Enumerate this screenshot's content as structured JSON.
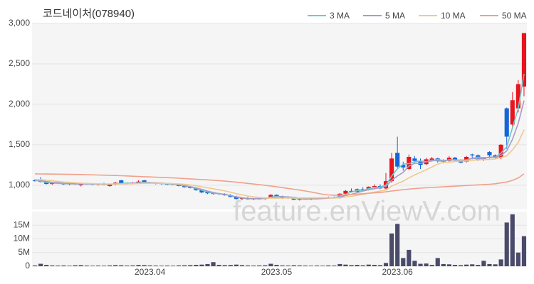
{
  "chart_data": {
    "type": "candlestick",
    "title": "코드네이처(078940)",
    "watermark": "feature.enViewV.com",
    "up_color": "#e8141e",
    "down_color": "#1565d8",
    "volume_color": "#4a4a6a",
    "categories": [
      null,
      null,
      null,
      null,
      null,
      null,
      null,
      null,
      null,
      null,
      null,
      null,
      null,
      null,
      null,
      null,
      null,
      null,
      null,
      null,
      "2023.04",
      null,
      null,
      null,
      null,
      null,
      null,
      null,
      null,
      null,
      null,
      null,
      null,
      null,
      null,
      null,
      null,
      null,
      null,
      null,
      null,
      null,
      "2023.05",
      null,
      null,
      null,
      null,
      null,
      null,
      null,
      null,
      null,
      null,
      null,
      null,
      null,
      null,
      null,
      null,
      null,
      null,
      null,
      null,
      "2023.06",
      null,
      null,
      null,
      null,
      null,
      null,
      null,
      null,
      null,
      null,
      null,
      null,
      null,
      null,
      null,
      null,
      null,
      null,
      null,
      null,
      null,
      null
    ],
    "open": [
      1060,
      1060,
      1040,
      1015,
      1030,
      1020,
      1010,
      1025,
      1000,
      1020,
      1015,
      1010,
      1015,
      990,
      1010,
      1060,
      1030,
      1020,
      1030,
      1060,
      1030,
      1020,
      1025,
      1015,
      1005,
      1005,
      990,
      980,
      960,
      940,
      915,
      900,
      900,
      890,
      875,
      860,
      830,
      840,
      825,
      835,
      830,
      845,
      880,
      860,
      840,
      850,
      820,
      830,
      825,
      835,
      840,
      845,
      850,
      840,
      895,
      930,
      920,
      950,
      945,
      980,
      990,
      960,
      1050,
      1400,
      1250,
      1200,
      1330,
      1300,
      1260,
      1310,
      1330,
      1300,
      1300,
      1340,
      1310,
      1290,
      1380,
      1370,
      1320,
      1410,
      1370,
      1340,
      1950,
      1750,
      1950,
      2220
    ],
    "high": [
      1075,
      1100,
      1050,
      1040,
      1040,
      1030,
      1030,
      1035,
      1030,
      1030,
      1025,
      1020,
      1030,
      1020,
      1040,
      1065,
      1035,
      1040,
      1060,
      1065,
      1040,
      1030,
      1030,
      1025,
      1020,
      1015,
      1000,
      990,
      970,
      955,
      930,
      915,
      905,
      900,
      890,
      870,
      850,
      855,
      840,
      850,
      850,
      890,
      885,
      870,
      860,
      855,
      840,
      845,
      840,
      850,
      850,
      860,
      860,
      900,
      940,
      960,
      960,
      975,
      985,
      1010,
      1010,
      1150,
      1400,
      1600,
      1290,
      1380,
      1360,
      1330,
      1340,
      1350,
      1340,
      1320,
      1360,
      1350,
      1320,
      1360,
      1390,
      1380,
      1350,
      1420,
      1380,
      1510,
      1960,
      2150,
      2300,
      2880
    ],
    "low": [
      1045,
      1035,
      1010,
      1005,
      1015,
      1005,
      1000,
      1005,
      985,
      1005,
      1000,
      995,
      1000,
      980,
      1000,
      1020,
      1010,
      1010,
      1020,
      1020,
      1015,
      1010,
      1005,
      1000,
      1000,
      985,
      970,
      960,
      930,
      900,
      890,
      885,
      880,
      870,
      850,
      820,
      815,
      820,
      815,
      820,
      820,
      840,
      850,
      830,
      830,
      815,
      810,
      820,
      815,
      825,
      830,
      835,
      835,
      835,
      880,
      910,
      910,
      930,
      935,
      960,
      950,
      950,
      1030,
      1200,
      1180,
      1190,
      1280,
      1200,
      1250,
      1290,
      1280,
      1270,
      1290,
      1300,
      1270,
      1280,
      1320,
      1300,
      1300,
      1330,
      1330,
      1320,
      1450,
      1700,
      1900,
      2100
    ],
    "close": [
      1050,
      1040,
      1015,
      1030,
      1020,
      1010,
      1025,
      1010,
      1020,
      1015,
      1010,
      1015,
      1005,
      1010,
      1030,
      1025,
      1020,
      1030,
      1045,
      1030,
      1020,
      1025,
      1015,
      1010,
      1012,
      990,
      975,
      965,
      940,
      910,
      900,
      895,
      890,
      875,
      855,
      830,
      840,
      825,
      835,
      830,
      845,
      880,
      860,
      840,
      850,
      820,
      830,
      825,
      835,
      840,
      845,
      850,
      840,
      895,
      930,
      920,
      950,
      940,
      980,
      990,
      960,
      1050,
      1330,
      1230,
      1220,
      1350,
      1300,
      1250,
      1320,
      1330,
      1300,
      1290,
      1340,
      1310,
      1280,
      1350,
      1370,
      1320,
      1330,
      1370,
      1340,
      1500,
      1600,
      2050,
      2250,
      2880
    ],
    "volume": [
      300000,
      900000,
      500000,
      300000,
      250000,
      300000,
      200000,
      350000,
      400000,
      250000,
      200000,
      250000,
      200000,
      300000,
      400000,
      350000,
      250000,
      300000,
      450000,
      400000,
      300000,
      250000,
      200000,
      250000,
      200000,
      300000,
      350000,
      400000,
      500000,
      600000,
      800000,
      1500000,
      500000,
      400000,
      450000,
      600000,
      400000,
      300000,
      250000,
      300000,
      350000,
      900000,
      500000,
      300000,
      250000,
      350000,
      300000,
      250000,
      200000,
      250000,
      200000,
      300000,
      250000,
      800000,
      600000,
      400000,
      500000,
      350000,
      600000,
      500000,
      400000,
      1200000,
      12000000,
      15500000,
      3000000,
      6000000,
      2000000,
      900000,
      1000000,
      500000,
      3000000,
      800000,
      700000,
      500000,
      400000,
      600000,
      700000,
      500000,
      2000000,
      800000,
      700000,
      2500000,
      16000000,
      19000000,
      5000000,
      11000000
    ],
    "series": [
      {
        "name": "3 MA",
        "color": "#6cc9cc",
        "values": [
          1060,
          1050,
          1035,
          1028,
          1022,
          1020,
          1018,
          1015,
          1018,
          1015,
          1015,
          1013,
          1010,
          1010,
          1015,
          1022,
          1025,
          1025,
          1032,
          1035,
          1032,
          1025,
          1020,
          1017,
          1012,
          1004,
          992,
          977,
          960,
          938,
          917,
          902,
          895,
          887,
          873,
          853,
          842,
          832,
          833,
          830,
          837,
          852,
          862,
          860,
          850,
          837,
          833,
          825,
          830,
          833,
          840,
          845,
          845,
          862,
          888,
          915,
          933,
          937,
          957,
          970,
          977,
          1000,
          1113,
          1203,
          1260,
          1267,
          1290,
          1300,
          1290,
          1300,
          1317,
          1307,
          1310,
          1313,
          1310,
          1313,
          1333,
          1347,
          1340,
          1340,
          1347,
          1397,
          1473,
          1710,
          1950,
          2377
        ]
      },
      {
        "name": "5 MA",
        "color": "#a99bc4",
        "values": [
          1065,
          1058,
          1045,
          1035,
          1031,
          1023,
          1020,
          1017,
          1017,
          1016,
          1016,
          1014,
          1013,
          1011,
          1014,
          1017,
          1018,
          1023,
          1030,
          1030,
          1028,
          1030,
          1027,
          1020,
          1016,
          1010,
          995,
          983,
          968,
          949,
          928,
          909,
          895,
          885,
          871,
          857,
          845,
          837,
          835,
          834,
          835,
          843,
          854,
          858,
          855,
          850,
          840,
          833,
          832,
          830,
          835,
          840,
          843,
          854,
          872,
          887,
          907,
          927,
          944,
          956,
          968,
          984,
          1062,
          1114,
          1158,
          1236,
          1270,
          1270,
          1288,
          1310,
          1300,
          1298,
          1316,
          1314,
          1304,
          1314,
          1330,
          1326,
          1330,
          1348,
          1346,
          1368,
          1424,
          1568,
          1766,
          2046
        ]
      },
      {
        "name": "10 MA",
        "color": "#f2c88f",
        "values": [
          1070,
          1068,
          1062,
          1055,
          1048,
          1040,
          1035,
          1030,
          1025,
          1022,
          1020,
          1017,
          1016,
          1014,
          1015,
          1016,
          1016,
          1018,
          1021,
          1023,
          1023,
          1024,
          1024,
          1022,
          1019,
          1016,
          1011,
          1004,
          993,
          981,
          969,
          956,
          943,
          929,
          913,
          895,
          881,
          867,
          856,
          848,
          842,
          840,
          840,
          840,
          843,
          842,
          842,
          842,
          843,
          843,
          846,
          843,
          841,
          846,
          854,
          863,
          875,
          886,
          900,
          915,
          927,
          940,
          988,
          1020,
          1050,
          1090,
          1127,
          1158,
          1192,
          1226,
          1260,
          1284,
          1285,
          1293,
          1299,
          1299,
          1306,
          1313,
          1315,
          1319,
          1323,
          1342,
          1363,
          1437,
          1529,
          1686
        ]
      },
      {
        "name": "50 MA",
        "color": "#f0a08c",
        "values": [
          1140,
          1139,
          1138,
          1137,
          1136,
          1135,
          1134,
          1133,
          1132,
          1130,
          1128,
          1126,
          1124,
          1122,
          1120,
          1117,
          1114,
          1111,
          1108,
          1105,
          1102,
          1099,
          1096,
          1093,
          1090,
          1086,
          1082,
          1078,
          1074,
          1070,
          1066,
          1061,
          1056,
          1050,
          1044,
          1037,
          1030,
          1022,
          1014,
          1006,
          998,
          990,
          980,
          970,
          960,
          950,
          940,
          928,
          916,
          902,
          888,
          880,
          875,
          878,
          882,
          886,
          890,
          895,
          900,
          905,
          910,
          918,
          928,
          936,
          944,
          952,
          958,
          963,
          968,
          972,
          976,
          980,
          984,
          988,
          992,
          996,
          1000,
          1004,
          1008,
          1012,
          1018,
          1028,
          1040,
          1060,
          1090,
          1140
        ]
      }
    ],
    "ylim": [
      700,
      3000
    ],
    "yticks": [
      {
        "value": 1000,
        "label": "1,000"
      },
      {
        "value": 1500,
        "label": "1,500"
      },
      {
        "value": 2000,
        "label": "2,000"
      },
      {
        "value": 2500,
        "label": "2,500"
      },
      {
        "value": 3000,
        "label": "3,000"
      }
    ],
    "volume_ylim": [
      0,
      20000000
    ],
    "volume_yticks": [
      0,
      {
        "value": 5000000,
        "label": "5M"
      },
      {
        "value": 10000000,
        "label": "10M"
      },
      {
        "value": 15000000,
        "label": "15M"
      }
    ],
    "grid": true
  }
}
